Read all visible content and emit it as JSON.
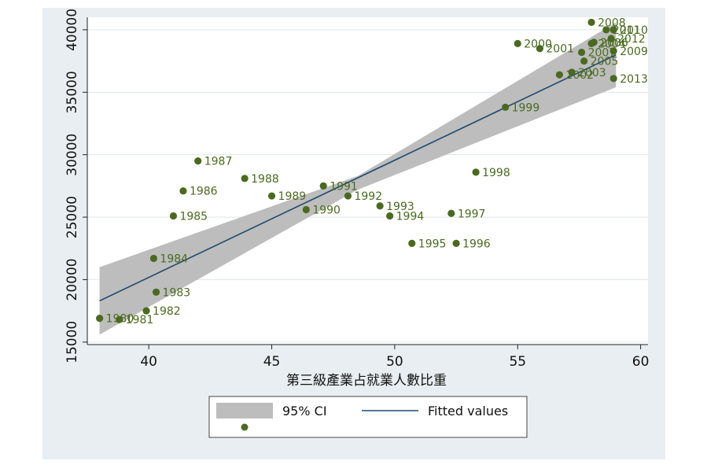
{
  "chart_data": {
    "type": "scatter",
    "title": "",
    "xlabel": "第三級產業占就業人數比重",
    "ylabel": "",
    "xlim": [
      37.5,
      60.3
    ],
    "ylim": [
      14800,
      41000
    ],
    "x_ticks": [
      "40",
      "45",
      "50",
      "55",
      "60"
    ],
    "y_ticks": [
      "15000",
      "20000",
      "25000",
      "30000",
      "35000",
      "40000"
    ],
    "grid": "horizontal",
    "legend_position": "bottom",
    "fit_line": {
      "x": [
        38.0,
        59.0
      ],
      "y": [
        18300,
        38000
      ]
    },
    "ci_band": {
      "x": [
        38.0,
        48.5,
        59.0
      ],
      "upper": [
        21000,
        28300,
        40600
      ],
      "lower": [
        15600,
        27200,
        35400
      ]
    },
    "series": [
      {
        "points": [
          {
            "label": "1980",
            "x": 38.0,
            "y": 16900
          },
          {
            "label": "1981",
            "x": 38.8,
            "y": 16800
          },
          {
            "label": "1982",
            "x": 39.9,
            "y": 17500
          },
          {
            "label": "1983",
            "x": 40.3,
            "y": 19000
          },
          {
            "label": "1984",
            "x": 40.2,
            "y": 21700
          },
          {
            "label": "1985",
            "x": 41.0,
            "y": 25100
          },
          {
            "label": "1986",
            "x": 41.4,
            "y": 27100
          },
          {
            "label": "1987",
            "x": 42.0,
            "y": 29500
          },
          {
            "label": "1988",
            "x": 43.9,
            "y": 28100
          },
          {
            "label": "1989",
            "x": 45.0,
            "y": 26700
          },
          {
            "label": "1990",
            "x": 46.4,
            "y": 25600
          },
          {
            "label": "1991",
            "x": 47.1,
            "y": 27500
          },
          {
            "label": "1992",
            "x": 48.1,
            "y": 26700
          },
          {
            "label": "1993",
            "x": 49.4,
            "y": 25900
          },
          {
            "label": "1994",
            "x": 49.8,
            "y": 25100
          },
          {
            "label": "1995",
            "x": 50.7,
            "y": 22900
          },
          {
            "label": "1996",
            "x": 52.5,
            "y": 22900
          },
          {
            "label": "1997",
            "x": 52.3,
            "y": 25300
          },
          {
            "label": "1998",
            "x": 53.3,
            "y": 28600
          },
          {
            "label": "1999",
            "x": 54.5,
            "y": 33800
          },
          {
            "label": "2000",
            "x": 55.0,
            "y": 38900
          },
          {
            "label": "2001",
            "x": 55.9,
            "y": 38500
          },
          {
            "label": "2002",
            "x": 56.7,
            "y": 36400
          },
          {
            "label": "2003",
            "x": 57.2,
            "y": 36600
          },
          {
            "label": "2004",
            "x": 58.0,
            "y": 38900
          },
          {
            "label": "2005",
            "x": 57.7,
            "y": 37500
          },
          {
            "label": "2006",
            "x": 58.1,
            "y": 39000
          },
          {
            "label": "2007",
            "x": 57.6,
            "y": 38200
          },
          {
            "label": "2008",
            "x": 58.0,
            "y": 40600
          },
          {
            "label": "2009",
            "x": 58.9,
            "y": 38300
          },
          {
            "label": "2010",
            "x": 58.9,
            "y": 40000
          },
          {
            "label": "2011",
            "x": 58.6,
            "y": 40000
          },
          {
            "label": "2012",
            "x": 58.8,
            "y": 39300
          },
          {
            "label": "2013",
            "x": 58.9,
            "y": 36100
          }
        ]
      }
    ]
  },
  "legend": {
    "ci_label": "95% CI",
    "fit_label": "Fitted values"
  },
  "colors": {
    "outer_background": "#e8eef1",
    "plot_background": "#ffffff",
    "marker": "#4a6b1e",
    "marker_label": "#4a6b1e",
    "fit_line": "#1f4a6e",
    "ci_band": "#bdbdbd",
    "grid": "#dfe6ea"
  }
}
